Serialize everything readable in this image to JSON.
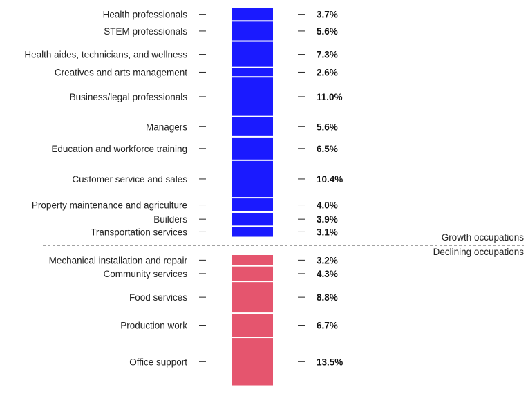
{
  "chart_data": {
    "type": "bar",
    "categories": [
      "Health professionals",
      "STEM professionals",
      "Health aides, technicians, and wellness",
      "Creatives and arts management",
      "Business/legal professionals",
      "Managers",
      "Education and workforce training",
      "Customer service and sales",
      "Property maintenance and agriculture",
      "Builders",
      "Transportation services",
      "Mechanical installation and repair",
      "Community services",
      "Food services",
      "Production work",
      "Office support"
    ],
    "series": [
      {
        "values": [
          3.7,
          5.6,
          7.3,
          2.6,
          11.0,
          5.6,
          6.5,
          10.4,
          4.0,
          3.9,
          3.1,
          null,
          null,
          null,
          null,
          null
        ]
      },
      {
        "values": [
          null,
          null,
          null,
          null,
          null,
          null,
          null,
          null,
          null,
          null,
          null,
          3.2,
          4.3,
          8.8,
          6.7,
          13.5
        ]
      }
    ],
    "value_labels": [
      "3.7%",
      "5.6%",
      "7.3%",
      "2.6%",
      "11.0%",
      "5.6%",
      "6.5%",
      "10.4%",
      "4.0%",
      "3.9%",
      "3.1%",
      "3.2%",
      "4.3%",
      "8.8%",
      "6.7%",
      "13.5%"
    ],
    "groups": [
      "Growth occupations",
      "Declining occupations"
    ],
    "group_of_category": [
      "growth",
      "growth",
      "growth",
      "growth",
      "growth",
      "growth",
      "growth",
      "growth",
      "growth",
      "growth",
      "growth",
      "declining",
      "declining",
      "declining",
      "declining",
      "declining"
    ],
    "colors": {
      "growth": "#1a1aff",
      "declining": "#e5556e"
    }
  }
}
